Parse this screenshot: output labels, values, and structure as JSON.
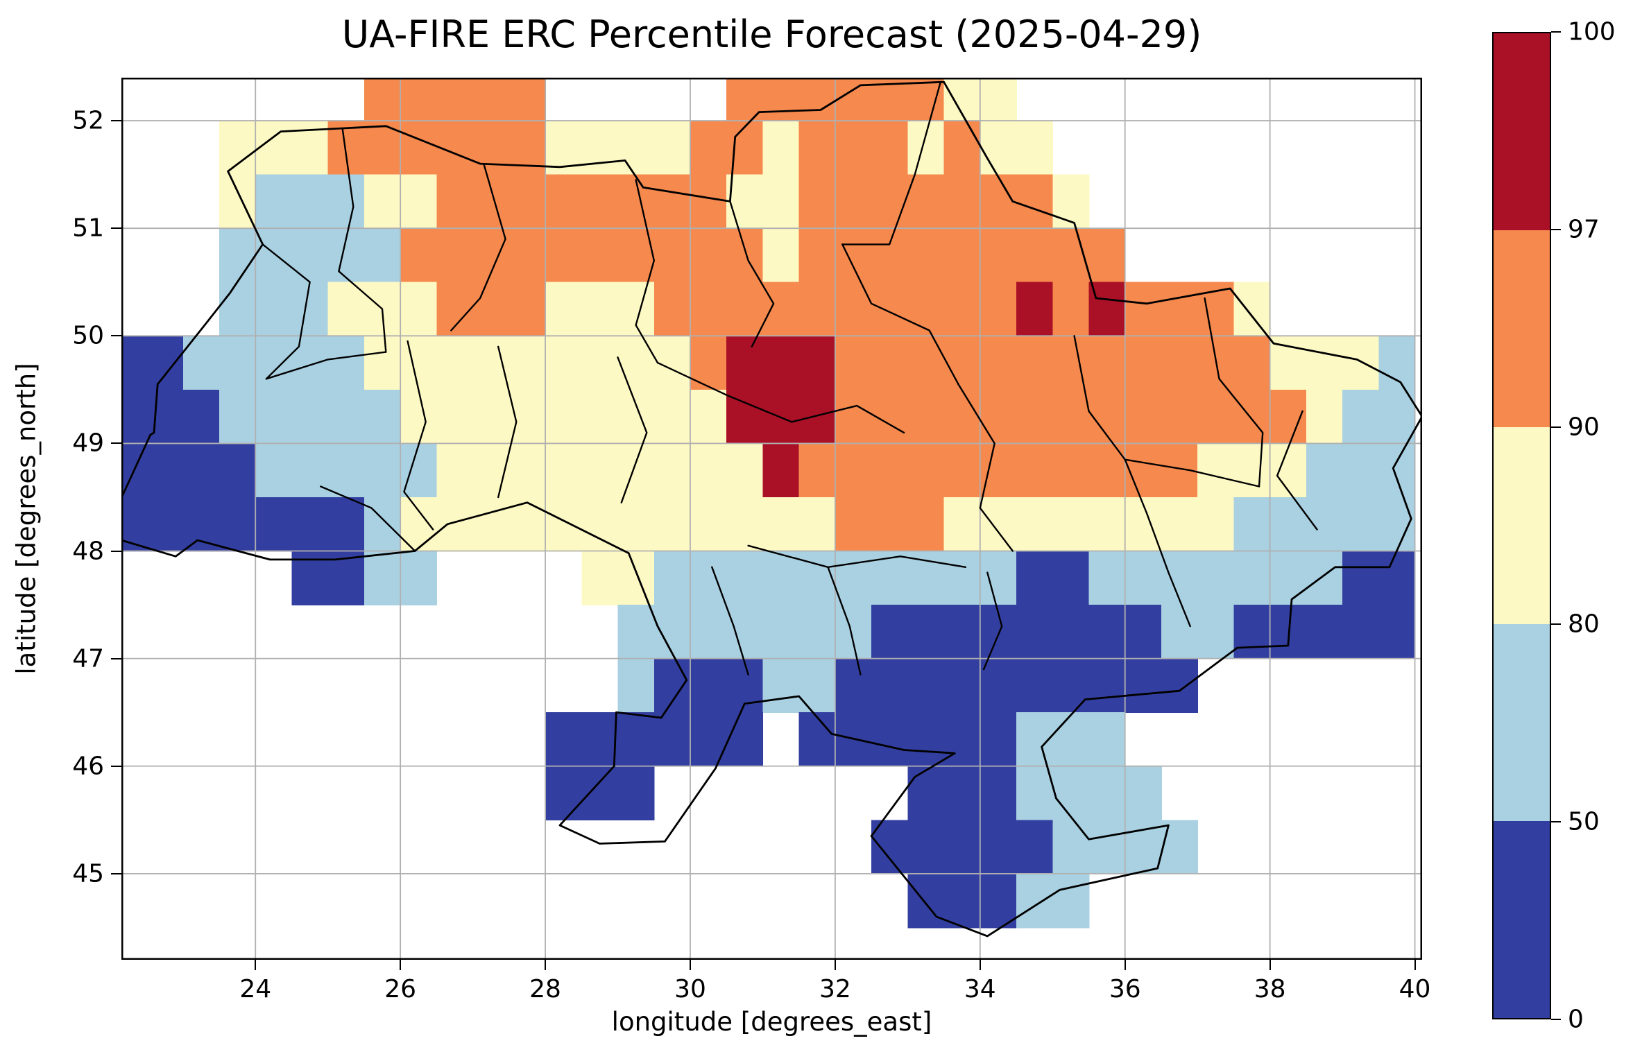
{
  "figure": {
    "title": "UA-FIRE ERC Percentile Forecast (2025-04-29)",
    "xlabel": "longitude [degrees_east]",
    "ylabel": "latitude [degrees_north]",
    "background": "#ffffff"
  },
  "axes": {
    "x_ticks": [
      24,
      26,
      28,
      30,
      32,
      34,
      36,
      38,
      40
    ],
    "y_ticks": [
      45,
      46,
      47,
      48,
      49,
      50,
      51,
      52
    ],
    "lon_range": [
      22.15,
      40.1
    ],
    "lat_range": [
      44.2,
      52.4
    ],
    "grid_color": "#b0b0b0",
    "frame_color": "#000000"
  },
  "colorbar": {
    "levels": [
      0,
      50,
      80,
      90,
      97,
      100
    ],
    "tick_labels": [
      "0",
      "50",
      "80",
      "90",
      "97",
      "100"
    ],
    "colors": [
      "#333fa0",
      "#a9d1e2",
      "#fdf9c4",
      "#f5894e",
      "#ab1126"
    ]
  },
  "chart_data": {
    "type": "heatmap",
    "title": "UA-FIRE ERC Percentile Forecast (2025-04-29)",
    "date": "2025-04-29",
    "xlabel": "longitude [degrees_east]",
    "ylabel": "latitude [degrees_north]",
    "units": "ERC percentile",
    "levels": [
      0,
      50,
      80,
      90,
      97,
      100
    ],
    "legend_position": "right-colorbar",
    "grid_on": true,
    "bins": [
      {
        "code": "1",
        "range": "0-50",
        "color": "#333fa0"
      },
      {
        "code": "2",
        "range": "50-80",
        "color": "#a9d1e2"
      },
      {
        "code": "3",
        "range": "80-90",
        "color": "#fdf9c4"
      },
      {
        "code": "4",
        "range": "90-97",
        "color": "#f5894e"
      },
      {
        "code": "5",
        "range": "97-100",
        "color": "#ab1126"
      }
    ],
    "grid_lon_start": 22.0,
    "grid_lat_top": 52.5,
    "cell_deg": 0.5,
    "grid": [
      "000000044444000004444443300000000000",
      "000333444444333344344434330000000000",
      "000322233444444443344444443000000000",
      "000222224444444444344444444400000000",
      "000222333444333444444444454544430000",
      "112222233333333345554444444444443332",
      "111222223333333335554444444444444322",
      "111122222333333333544444444444333222",
      "111111123333333333334443333333322222",
      "000001122000033222222222211222222211",
      "000000000000002222222111111112211111",
      "000000000000002111221111111111000000",
      "000000000000111111011111122200000000",
      "000000000000111000000011122220000000",
      "000000000000000000000111112222000000",
      "000000000000000000000011122000000000"
    ],
    "ukraine_border": [
      [
        22.6,
        49.1
      ],
      [
        22.65,
        49.55
      ],
      [
        23.3,
        50.1
      ],
      [
        23.65,
        50.4
      ],
      [
        24.1,
        50.85
      ],
      [
        23.62,
        51.53
      ],
      [
        24.35,
        51.9
      ],
      [
        25.8,
        51.95
      ],
      [
        27.1,
        51.6
      ],
      [
        28.2,
        51.57
      ],
      [
        29.1,
        51.63
      ],
      [
        29.35,
        51.38
      ],
      [
        30.55,
        51.25
      ],
      [
        30.62,
        51.85
      ],
      [
        30.95,
        52.08
      ],
      [
        31.8,
        52.1
      ],
      [
        32.35,
        52.33
      ],
      [
        33.5,
        52.36
      ],
      [
        34.1,
        51.65
      ],
      [
        34.45,
        51.25
      ],
      [
        35.3,
        51.05
      ],
      [
        35.6,
        50.35
      ],
      [
        36.3,
        50.3
      ],
      [
        37.45,
        50.44
      ],
      [
        38.05,
        49.93
      ],
      [
        39.2,
        49.78
      ],
      [
        39.8,
        49.57
      ],
      [
        40.1,
        49.25
      ],
      [
        39.7,
        48.77
      ],
      [
        39.95,
        48.3
      ],
      [
        39.65,
        47.85
      ],
      [
        38.9,
        47.85
      ],
      [
        38.3,
        47.55
      ],
      [
        38.25,
        47.12
      ],
      [
        37.55,
        47.1
      ],
      [
        36.75,
        46.7
      ],
      [
        35.45,
        46.62
      ],
      [
        34.85,
        46.18
      ],
      [
        35.05,
        45.7
      ],
      [
        35.5,
        45.32
      ],
      [
        36.6,
        45.45
      ],
      [
        36.45,
        45.05
      ],
      [
        35.1,
        44.85
      ],
      [
        34.1,
        44.42
      ],
      [
        33.4,
        44.6
      ],
      [
        32.5,
        45.35
      ],
      [
        33.1,
        45.9
      ],
      [
        33.65,
        46.12
      ],
      [
        32.95,
        46.15
      ],
      [
        31.95,
        46.3
      ],
      [
        31.5,
        46.65
      ],
      [
        30.75,
        46.58
      ],
      [
        30.35,
        45.98
      ],
      [
        29.65,
        45.3
      ],
      [
        28.75,
        45.28
      ],
      [
        28.2,
        45.45
      ],
      [
        28.95,
        46.0
      ],
      [
        28.98,
        46.5
      ],
      [
        29.6,
        46.45
      ],
      [
        29.95,
        46.8
      ],
      [
        29.55,
        47.3
      ],
      [
        29.15,
        47.98
      ],
      [
        27.75,
        48.45
      ],
      [
        26.65,
        48.25
      ],
      [
        26.2,
        48.0
      ],
      [
        25.1,
        47.92
      ],
      [
        24.2,
        47.92
      ],
      [
        23.2,
        48.1
      ],
      [
        22.9,
        47.95
      ],
      [
        22.15,
        48.1
      ],
      [
        22.1,
        48.42
      ],
      [
        22.55,
        49.08
      ]
    ],
    "region_boundaries": [
      [
        [
          24.1,
          50.85
        ],
        [
          24.75,
          50.5
        ],
        [
          24.6,
          49.9
        ],
        [
          24.15,
          49.6
        ]
      ],
      [
        [
          25.2,
          51.93
        ],
        [
          25.35,
          51.2
        ],
        [
          25.15,
          50.6
        ],
        [
          25.75,
          50.25
        ],
        [
          25.8,
          49.85
        ]
      ],
      [
        [
          27.15,
          51.6
        ],
        [
          27.45,
          50.9
        ],
        [
          27.1,
          50.35
        ],
        [
          26.7,
          50.05
        ]
      ],
      [
        [
          29.25,
          51.45
        ],
        [
          29.5,
          50.7
        ],
        [
          29.25,
          50.1
        ],
        [
          29.55,
          49.75
        ]
      ],
      [
        [
          30.55,
          51.25
        ],
        [
          30.8,
          50.7
        ],
        [
          31.15,
          50.3
        ],
        [
          30.85,
          49.9
        ]
      ],
      [
        [
          33.45,
          52.35
        ],
        [
          33.1,
          51.5
        ],
        [
          32.75,
          50.85
        ],
        [
          32.1,
          50.85
        ]
      ],
      [
        [
          32.1,
          50.85
        ],
        [
          32.5,
          50.3
        ],
        [
          33.3,
          50.05
        ],
        [
          33.7,
          49.55
        ]
      ],
      [
        [
          26.1,
          49.95
        ],
        [
          26.35,
          49.2
        ],
        [
          26.05,
          48.55
        ],
        [
          26.45,
          48.2
        ]
      ],
      [
        [
          27.35,
          49.9
        ],
        [
          27.6,
          49.2
        ],
        [
          27.35,
          48.5
        ]
      ],
      [
        [
          29.0,
          49.8
        ],
        [
          29.4,
          49.1
        ],
        [
          29.05,
          48.45
        ]
      ],
      [
        [
          30.5,
          49.45
        ],
        [
          31.4,
          49.2
        ],
        [
          32.3,
          49.35
        ],
        [
          32.95,
          49.1
        ]
      ],
      [
        [
          33.7,
          49.55
        ],
        [
          34.2,
          49.0
        ],
        [
          34.0,
          48.4
        ],
        [
          34.45,
          48.0
        ]
      ],
      [
        [
          35.3,
          50.0
        ],
        [
          35.5,
          49.3
        ],
        [
          36.0,
          48.85
        ],
        [
          36.3,
          48.35
        ]
      ],
      [
        [
          37.1,
          50.35
        ],
        [
          37.3,
          49.6
        ],
        [
          37.9,
          49.1
        ],
        [
          37.85,
          48.6
        ]
      ],
      [
        [
          38.45,
          49.3
        ],
        [
          38.1,
          48.7
        ],
        [
          38.65,
          48.2
        ]
      ],
      [
        [
          24.15,
          49.6
        ],
        [
          25.0,
          49.78
        ],
        [
          25.8,
          49.85
        ]
      ],
      [
        [
          29.55,
          49.75
        ],
        [
          30.5,
          49.45
        ]
      ],
      [
        [
          30.8,
          48.05
        ],
        [
          31.9,
          47.85
        ],
        [
          32.9,
          47.95
        ],
        [
          33.8,
          47.85
        ]
      ],
      [
        [
          30.3,
          47.85
        ],
        [
          30.6,
          47.3
        ],
        [
          30.8,
          46.85
        ]
      ],
      [
        [
          31.9,
          47.85
        ],
        [
          32.2,
          47.3
        ],
        [
          32.35,
          46.85
        ]
      ],
      [
        [
          34.1,
          47.8
        ],
        [
          34.3,
          47.3
        ],
        [
          34.05,
          46.9
        ]
      ],
      [
        [
          36.3,
          48.35
        ],
        [
          36.6,
          47.8
        ],
        [
          36.9,
          47.3
        ]
      ],
      [
        [
          36.0,
          48.85
        ],
        [
          36.9,
          48.75
        ],
        [
          37.85,
          48.6
        ]
      ],
      [
        [
          24.9,
          48.6
        ],
        [
          25.6,
          48.4
        ],
        [
          26.2,
          48.0
        ]
      ]
    ]
  }
}
